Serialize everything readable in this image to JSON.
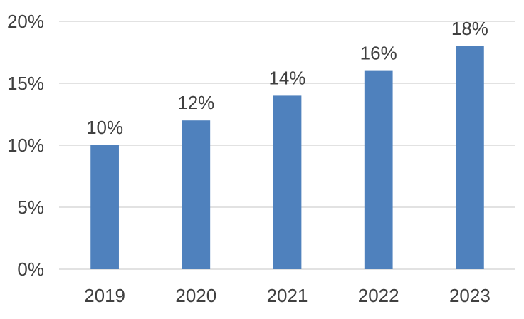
{
  "chart_data": {
    "type": "bar",
    "title": "",
    "xlabel": "",
    "ylabel": "",
    "categories": [
      "2019",
      "2020",
      "2021",
      "2022",
      "2023"
    ],
    "values": [
      10,
      12,
      14,
      16,
      18
    ],
    "data_labels": [
      "10%",
      "12%",
      "14%",
      "16%",
      "18%"
    ],
    "ylim": [
      0,
      20
    ],
    "y_ticks": [
      0,
      5,
      10,
      15,
      20
    ],
    "y_tick_labels": [
      "0%",
      "5%",
      "10%",
      "15%",
      "20%"
    ],
    "grid": true,
    "legend": "none",
    "bar_color": "#4f81bd",
    "grid_color": "#d9d9d9",
    "text_color": "#404040"
  }
}
